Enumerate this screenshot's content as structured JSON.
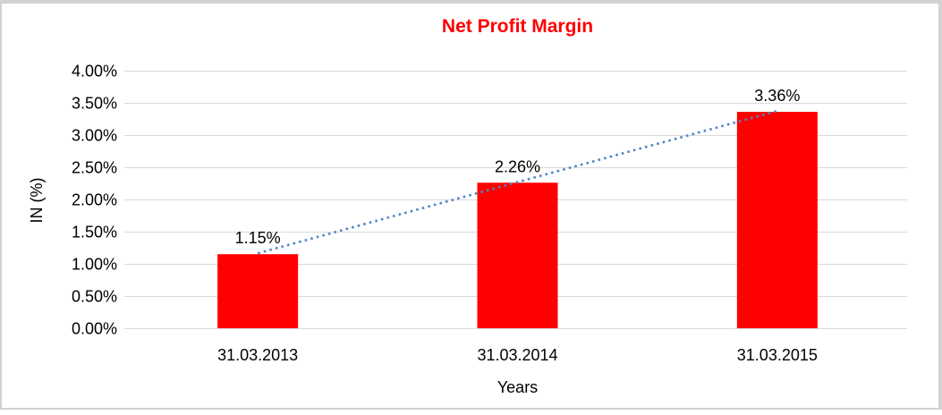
{
  "window": {
    "frame_border_color": "#d2d2d2",
    "background": "#ffffff"
  },
  "chart_data": {
    "type": "bar",
    "title": "Net Profit Margin",
    "title_color": "#ff0000",
    "xlabel": "Years",
    "ylabel": "IN (%)",
    "categories": [
      "31.03.2013",
      "31.03.2014",
      "31.03.2015"
    ],
    "values": [
      1.15,
      2.26,
      3.36
    ],
    "data_labels": [
      "1.15%",
      "2.26%",
      "3.36%"
    ],
    "bar_color": "#ff0000",
    "ylim": [
      0,
      4
    ],
    "ytick_step": 0.5,
    "ytick_labels": [
      "0.00%",
      "0.50%",
      "1.00%",
      "1.50%",
      "2.00%",
      "2.50%",
      "3.00%",
      "3.50%",
      "4.00%"
    ],
    "grid": true,
    "gridline_color": "#d9d9d9",
    "legend": "none",
    "trendline": {
      "style": "dotted",
      "color": "#4f86c6",
      "from_value": 1.15,
      "to_value": 3.36
    }
  }
}
